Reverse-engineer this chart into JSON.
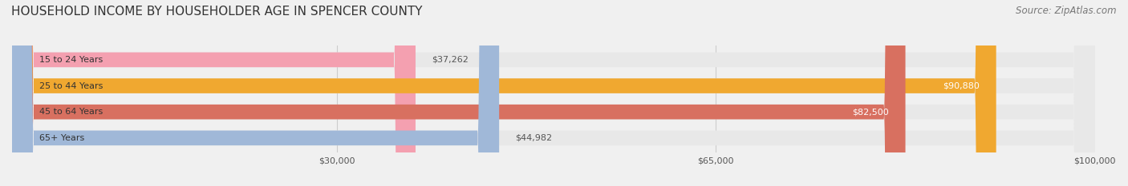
{
  "title": "HOUSEHOLD INCOME BY HOUSEHOLDER AGE IN SPENCER COUNTY",
  "source": "Source: ZipAtlas.com",
  "categories": [
    "15 to 24 Years",
    "25 to 44 Years",
    "45 to 64 Years",
    "65+ Years"
  ],
  "values": [
    37262,
    90880,
    82500,
    44982
  ],
  "bar_colors": [
    "#f4a0b0",
    "#f0a830",
    "#d87060",
    "#a0b8d8"
  ],
  "label_colors": [
    "#555555",
    "#ffffff",
    "#ffffff",
    "#555555"
  ],
  "xlim": [
    0,
    100000
  ],
  "xticks": [
    30000,
    65000,
    100000
  ],
  "xtick_labels": [
    "$30,000",
    "$65,000",
    "$100,000"
  ],
  "background_color": "#f0f0f0",
  "bar_background": "#e8e8e8",
  "title_fontsize": 11,
  "source_fontsize": 8.5,
  "bar_height": 0.55,
  "figsize": [
    14.06,
    2.33
  ]
}
